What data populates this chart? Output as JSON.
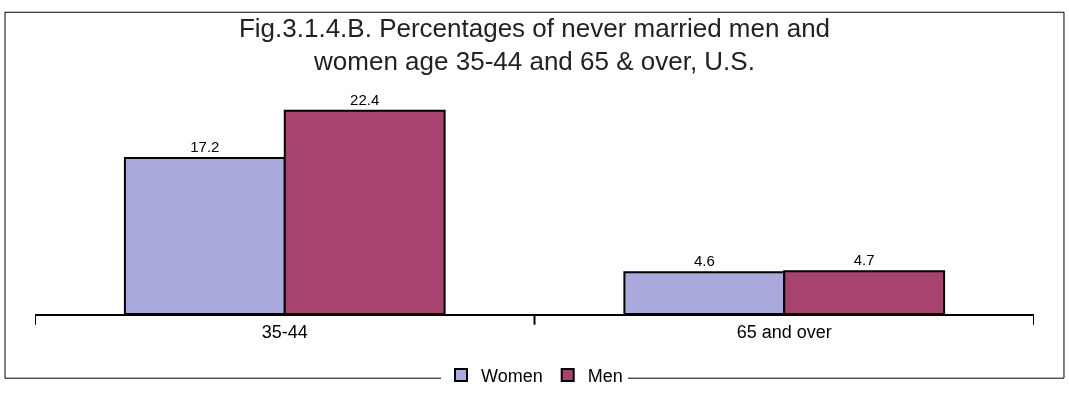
{
  "chart_data": {
    "type": "bar",
    "title": "Fig.3.1.4.B. Percentages of never married men and\nwomen age 35-44 and 65 & over, U.S.",
    "categories": [
      "35-44",
      "65 and over"
    ],
    "series": [
      {
        "name": "Women",
        "color": "#a9a9dc",
        "values": [
          17.2,
          4.6
        ]
      },
      {
        "name": "Men",
        "color": "#a8426f",
        "values": [
          22.4,
          4.7
        ]
      }
    ],
    "data_labels": true,
    "legend": "bottom"
  }
}
